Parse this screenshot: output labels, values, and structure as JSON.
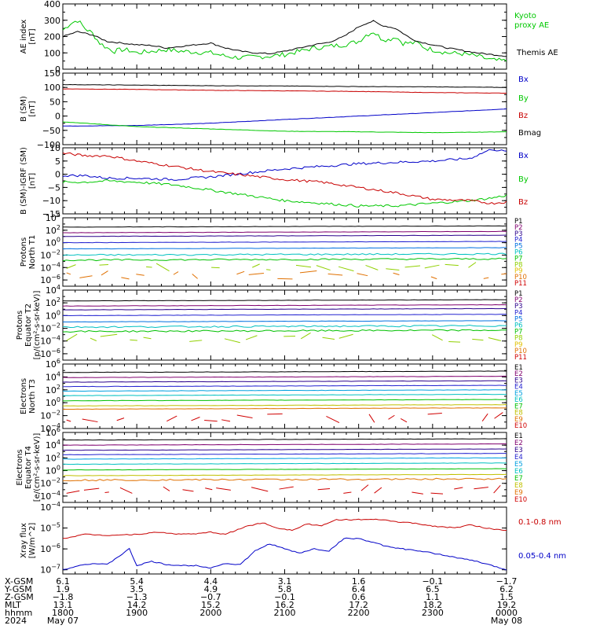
{
  "chart_data": [
    {
      "type": "line",
      "ylabel": "AE index [nT]",
      "ylim": [
        0,
        400
      ],
      "yticks": [
        0,
        100,
        200,
        300,
        400
      ],
      "yscale": "linear",
      "x_range_hours": [
        18,
        24
      ],
      "series": [
        {
          "name": "Kyoto proxy AE",
          "color": "#00c800",
          "x": [
            18.0,
            18.1,
            18.2,
            18.3,
            18.4,
            18.5,
            18.6,
            18.7,
            18.8,
            18.9,
            19.0,
            19.2,
            19.4,
            19.6,
            19.8,
            20.0,
            20.2,
            20.4,
            20.6,
            20.8,
            21.0,
            21.2,
            21.4,
            21.6,
            21.8,
            22.0,
            22.1,
            22.2,
            22.3,
            22.4,
            22.5,
            22.6,
            22.7,
            22.8,
            22.9,
            23.0,
            23.2,
            23.4,
            23.6,
            23.8,
            24.0
          ],
          "y": [
            240,
            280,
            300,
            250,
            220,
            160,
            130,
            110,
            120,
            115,
            100,
            110,
            120,
            110,
            105,
            100,
            80,
            70,
            75,
            80,
            90,
            110,
            130,
            140,
            150,
            170,
            210,
            230,
            190,
            180,
            200,
            160,
            160,
            160,
            130,
            120,
            100,
            95,
            80,
            55,
            50
          ]
        },
        {
          "name": "Themis AE",
          "color": "#000000",
          "x": [
            18.0,
            18.2,
            18.4,
            18.6,
            18.8,
            19.0,
            19.2,
            19.4,
            19.6,
            19.8,
            20.0,
            20.2,
            20.4,
            20.6,
            20.8,
            21.0,
            21.2,
            21.4,
            21.6,
            21.8,
            22.0,
            22.1,
            22.2,
            22.3,
            22.4,
            22.5,
            22.6,
            22.7,
            22.8,
            22.9,
            23.0,
            23.2,
            23.4,
            23.6,
            23.8,
            24.0
          ],
          "y": [
            200,
            230,
            210,
            170,
            160,
            150,
            145,
            130,
            140,
            150,
            160,
            130,
            110,
            100,
            95,
            110,
            130,
            150,
            165,
            200,
            260,
            280,
            295,
            270,
            260,
            250,
            220,
            190,
            170,
            160,
            150,
            130,
            115,
            100,
            90,
            80
          ]
        }
      ]
    },
    {
      "type": "line",
      "ylabel": "B (SM) [nT]",
      "ylim": [
        -100,
        150
      ],
      "yticks": [
        -100,
        -50,
        0,
        50,
        100,
        150
      ],
      "yscale": "linear",
      "x_range_hours": [
        18,
        24
      ],
      "series": [
        {
          "name": "Bx",
          "color": "#0000c8",
          "x": [
            18,
            19,
            20,
            21,
            22,
            23,
            24
          ],
          "y": [
            -35,
            -33,
            -25,
            -12,
            0,
            12,
            25
          ]
        },
        {
          "name": "By",
          "color": "#00c800",
          "x": [
            18,
            19,
            20,
            21,
            22,
            23,
            24
          ],
          "y": [
            -20,
            -37,
            -45,
            -53,
            -55,
            -58,
            -55
          ]
        },
        {
          "name": "Bz",
          "color": "#c80000",
          "x": [
            18,
            19,
            20,
            21,
            22,
            23,
            24
          ],
          "y": [
            95,
            93,
            90,
            88,
            86,
            82,
            80
          ]
        },
        {
          "name": "Bmag",
          "color": "#000000",
          "x": [
            18,
            19,
            20,
            21,
            22,
            23,
            24
          ],
          "y": [
            110,
            108,
            106,
            105,
            103,
            102,
            100
          ]
        }
      ]
    },
    {
      "type": "line",
      "ylabel": "B (SM)-IGRF (SM) [nT]",
      "ylim": [
        -15,
        10
      ],
      "yticks": [
        -15,
        -10,
        -5,
        0,
        5,
        10
      ],
      "yscale": "linear",
      "x_range_hours": [
        18,
        24
      ],
      "series": [
        {
          "name": "Bx",
          "color": "#0000c8",
          "x": [
            18.0,
            18.3,
            18.6,
            19.0,
            19.5,
            20.0,
            20.5,
            21.0,
            21.5,
            22.0,
            22.5,
            23.0,
            23.5,
            23.8,
            24.0
          ],
          "y": [
            -0.5,
            -0.5,
            -1.5,
            -1.5,
            -2,
            -1,
            0.5,
            2,
            3,
            4,
            4.5,
            5,
            6,
            9.5,
            8.5
          ]
        },
        {
          "name": "By",
          "color": "#00c800",
          "x": [
            18.0,
            18.3,
            18.6,
            19.0,
            19.5,
            20.0,
            20.5,
            21.0,
            21.5,
            22.0,
            22.5,
            23.0,
            23.5,
            23.8,
            24.0
          ],
          "y": [
            -3,
            -3,
            -2.5,
            -3,
            -4,
            -6,
            -8,
            -10,
            -11,
            -12,
            -12,
            -11,
            -10,
            -9,
            -8
          ]
        },
        {
          "name": "Bz",
          "color": "#c80000",
          "x": [
            18.0,
            18.3,
            18.6,
            19.0,
            19.5,
            20.0,
            20.5,
            21.0,
            21.5,
            22.0,
            22.5,
            23.0,
            23.5,
            23.8,
            24.0
          ],
          "y": [
            8,
            7,
            7,
            5,
            3,
            1,
            -0.5,
            -2,
            -3,
            -5,
            -7,
            -9.5,
            -10,
            -11,
            -10.5
          ]
        }
      ]
    },
    {
      "type": "line",
      "ylabel": "Protons North T1",
      "yscale": "log",
      "ylim_exp": [
        -7,
        4
      ],
      "ytick_exps": [
        -6,
        -4,
        -2,
        0,
        2,
        4
      ],
      "x_range_hours": [
        18,
        24
      ],
      "channels": [
        "P1",
        "P2",
        "P3",
        "P4",
        "P5",
        "P6",
        "P7",
        "P8",
        "P9",
        "P10",
        "P11"
      ],
      "colors": [
        "#000000",
        "#80006e",
        "#2a008c",
        "#2222d0",
        "#0070e0",
        "#00c0c0",
        "#00c000",
        "#90d000",
        "#e0c000",
        "#e07000",
        "#d00000"
      ],
      "log_values": [
        2.5,
        1.6,
        1.0,
        0.0,
        -1.0,
        -2.0,
        -2.8,
        -3.9,
        -10,
        -5.3,
        -10
      ],
      "dashed_channels": [
        "P8",
        "P10"
      ]
    },
    {
      "type": "line",
      "ylabel": "Protons Equator T2 [p/(cm²-s-sr-keV)]",
      "yscale": "log",
      "ylim_exp": [
        -7,
        4
      ],
      "ytick_exps": [
        -6,
        -4,
        -2,
        0,
        2,
        4
      ],
      "x_range_hours": [
        18,
        24
      ],
      "channels": [
        "P1",
        "P2",
        "P3",
        "P4",
        "P5",
        "P6",
        "P7",
        "P8",
        "P9",
        "P10",
        "P11"
      ],
      "colors": [
        "#000000",
        "#80006e",
        "#2a008c",
        "#2222d0",
        "#0070e0",
        "#00c0c0",
        "#00c000",
        "#90d000",
        "#e0c000",
        "#e07000",
        "#d00000"
      ],
      "log_values": [
        2.3,
        1.5,
        0.9,
        0.0,
        -1.0,
        -1.8,
        -2.5,
        -3.5,
        -10,
        -10,
        -10
      ],
      "dashed_channels": [
        "P8"
      ]
    },
    {
      "type": "line",
      "ylabel": "Electrons North T3",
      "yscale": "log",
      "ylim_exp": [
        -4,
        6
      ],
      "ytick_exps": [
        -4,
        -2,
        0,
        2,
        4,
        6
      ],
      "x_range_hours": [
        18,
        24
      ],
      "channels": [
        "E1",
        "E2",
        "E3",
        "E4",
        "E5",
        "E6",
        "E7",
        "E8",
        "E9",
        "E10"
      ],
      "colors": [
        "#000000",
        "#80006e",
        "#2a008c",
        "#2222d0",
        "#00a0e0",
        "#00c0c0",
        "#00c000",
        "#c0c000",
        "#e07000",
        "#d00000"
      ],
      "log_values": [
        4.7,
        3.9,
        3.2,
        2.5,
        1.8,
        1.1,
        0.3,
        -0.5,
        -1.0,
        -2.3
      ],
      "dashed_channels": [
        "E10"
      ]
    },
    {
      "type": "line",
      "ylabel": "Electrons Equator T4 [e/(cm²-s-sr-keV)]",
      "yscale": "log",
      "ylim_exp": [
        -5,
        6
      ],
      "ytick_exps": [
        -4,
        -2,
        0,
        2,
        4,
        6
      ],
      "x_range_hours": [
        18,
        24
      ],
      "channels": [
        "E1",
        "E2",
        "E3",
        "E4",
        "E5",
        "E6",
        "E7",
        "E8",
        "E9",
        "E10"
      ],
      "colors": [
        "#000000",
        "#80006e",
        "#2a008c",
        "#2222d0",
        "#00a0e0",
        "#00c0c0",
        "#00c000",
        "#c0c000",
        "#e07000",
        "#d00000"
      ],
      "log_values": [
        4.8,
        4.0,
        3.2,
        2.5,
        1.8,
        1.0,
        0.1,
        -0.8,
        -1.5,
        -3.0
      ],
      "dashed_channels": [
        "E10"
      ]
    },
    {
      "type": "line",
      "ylabel": "Xray flux [W/m^2]",
      "yscale": "log",
      "ylim_exp": [
        -7.2,
        -4
      ],
      "ytick_exps": [
        -7,
        -6,
        -5,
        -4
      ],
      "x_range_hours": [
        18,
        24
      ],
      "series": [
        {
          "name": "0.1-0.8 nm",
          "color": "#c80000",
          "x": [
            18.0,
            18.3,
            18.6,
            19.0,
            19.3,
            19.6,
            19.9,
            20.0,
            20.2,
            20.5,
            20.7,
            20.9,
            21.1,
            21.3,
            21.5,
            21.7,
            22.0,
            22.3,
            22.5,
            22.7,
            23.0,
            23.3,
            23.5,
            23.8,
            24.0
          ],
          "y": [
            -5.5,
            -5.3,
            -5.35,
            -5.3,
            -5.2,
            -5.3,
            -5.25,
            -5.2,
            -5.3,
            -4.9,
            -4.75,
            -5.0,
            -5.1,
            -4.8,
            -4.9,
            -4.6,
            -4.6,
            -4.6,
            -4.7,
            -4.75,
            -4.9,
            -5.0,
            -4.85,
            -5.05,
            -5.1
          ]
        },
        {
          "name": "0.05-0.4 nm",
          "color": "#0000c8",
          "x": [
            18.0,
            18.2,
            18.4,
            18.6,
            18.9,
            19.0,
            19.2,
            19.4,
            19.6,
            19.8,
            20.0,
            20.2,
            20.4,
            20.6,
            20.8,
            21.0,
            21.2,
            21.4,
            21.6,
            21.8,
            22.0,
            22.2,
            22.4,
            22.6,
            22.8,
            23.0,
            23.3,
            23.6,
            23.9,
            24.0
          ],
          "y": [
            -7.0,
            -6.8,
            -6.7,
            -6.75,
            -6.0,
            -6.8,
            -6.6,
            -6.75,
            -6.8,
            -6.8,
            -6.9,
            -6.7,
            -6.75,
            -6.1,
            -5.75,
            -6.0,
            -6.2,
            -6.0,
            -6.1,
            -5.5,
            -5.5,
            -5.7,
            -5.9,
            -6.0,
            -6.1,
            -6.2,
            -6.4,
            -6.6,
            -6.9,
            -7.0
          ]
        }
      ]
    }
  ],
  "panel_labels": [
    {
      "line1": "AE index",
      "line2": "[nT]"
    },
    {
      "line1": "B (SM)",
      "line2": "[nT]"
    },
    {
      "line1": "B (SM)-IGRF (SM)",
      "line2": "[nT]"
    },
    {
      "line1": "Protons",
      "line2": "North T1"
    },
    {
      "line1": "Protons",
      "line2": "Equator T2",
      "line3": "[p/(cm²-s-sr-keV)]"
    },
    {
      "line1": "Electrons",
      "line2": "North T3"
    },
    {
      "line1": "Electrons",
      "line2": "Equator T4",
      "line3": "[e/(cm²-s-sr-keV)]"
    },
    {
      "line1": "Xray flux",
      "line2": "[W/m^2]"
    }
  ],
  "legends": {
    "ae": [
      {
        "text": "Kyoto",
        "color": "#00c800"
      },
      {
        "text": "proxy AE",
        "color": "#00c800"
      },
      {
        "text": "Themis AE",
        "color": "#000000"
      }
    ],
    "bsm": [
      {
        "text": "Bx",
        "color": "#0000c8"
      },
      {
        "text": "By",
        "color": "#00c800"
      },
      {
        "text": "Bz",
        "color": "#c80000"
      },
      {
        "text": "Bmag",
        "color": "#000000"
      }
    ],
    "bigrf": [
      {
        "text": "Bx",
        "color": "#0000c8"
      },
      {
        "text": "By",
        "color": "#00c800"
      },
      {
        "text": "Bz",
        "color": "#c80000"
      }
    ],
    "xray": [
      {
        "text": "0.1-0.8 nm",
        "color": "#c80000"
      },
      {
        "text": "0.05-0.4 nm",
        "color": "#0000c8"
      }
    ]
  },
  "ephemeris": {
    "row_labels": [
      "X-GSM",
      "Y-GSM",
      "Z-GSM",
      "MLT",
      "hhmm",
      "2024"
    ],
    "columns": [
      [
        "6.1",
        "1.9",
        "-1.8",
        "13.1",
        "1800",
        "May 07"
      ],
      [
        "5.4",
        "3.5",
        "-1.3",
        "14.2",
        "1900",
        ""
      ],
      [
        "4.4",
        "4.9",
        "-0.7",
        "15.2",
        "2000",
        ""
      ],
      [
        "3.1",
        "5.8",
        "-0.1",
        "16.2",
        "2100",
        ""
      ],
      [
        "1.6",
        "6.4",
        "0.6",
        "17.2",
        "2200",
        ""
      ],
      [
        "-0.1",
        "6.5",
        "1.1",
        "18.2",
        "2300",
        ""
      ],
      [
        "-1.7",
        "6.2",
        "1.5",
        "19.2",
        "0000",
        "May 08"
      ]
    ]
  }
}
